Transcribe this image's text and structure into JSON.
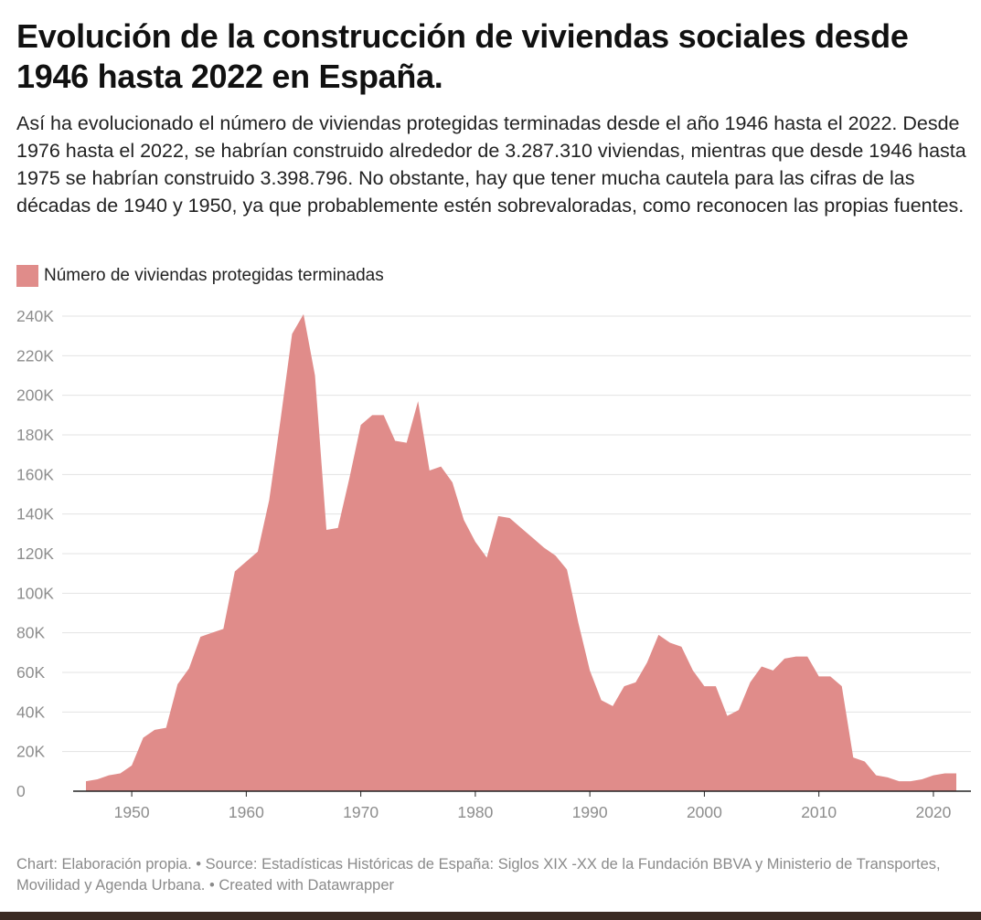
{
  "title": "Evolución de la construcción de viviendas sociales desde 1946 hasta 2022 en España.",
  "description": "Así ha evolucionado el número de viviendas protegidas terminadas desde el año 1946 hasta el 2022. Desde 1976 hasta el 2022, se habrían construido alrededor de 3.287.310 viviendas, mientras que desde 1946 hasta 1975 se habrían construido 3.398.796. No obstante, hay que tener mucha cautela para las cifras de las décadas de 1940 y 1950, ya que probablemente estén sobrevaloradas, como reconocen las propias fuentes.",
  "legend_label": "Número de viviendas protegidas terminadas",
  "footer": "Chart: Elaboración propia. • Source: Estadísticas Históricas de España: Siglos XIX -XX de la Fundación BBVA y Ministerio de Transportes, Movilidad y Agenda Urbana. • Created with Datawrapper",
  "colors": {
    "area": "#e08c8a",
    "grid": "#e3e3e3",
    "axis": "#222222",
    "tick_text": "#8d8d8d"
  },
  "chart_data": {
    "type": "area",
    "title": "Evolución de la construcción de viviendas sociales desde 1946 hasta 2022 en España.",
    "series_name": "Número de viviendas protegidas terminadas",
    "xlim": [
      1946,
      2022
    ],
    "ylim": [
      0,
      240000
    ],
    "x_ticks": [
      1950,
      1960,
      1970,
      1980,
      1990,
      2000,
      2010,
      2020
    ],
    "y_ticks": [
      0,
      20000,
      40000,
      60000,
      80000,
      100000,
      120000,
      140000,
      160000,
      180000,
      200000,
      220000,
      240000
    ],
    "y_tick_labels": [
      "0",
      "20K",
      "40K",
      "60K",
      "80K",
      "100K",
      "120K",
      "140K",
      "160K",
      "180K",
      "200K",
      "220K",
      "240K"
    ],
    "x": [
      1946,
      1947,
      1948,
      1949,
      1950,
      1951,
      1952,
      1953,
      1954,
      1955,
      1956,
      1957,
      1958,
      1959,
      1960,
      1961,
      1962,
      1963,
      1964,
      1965,
      1966,
      1967,
      1968,
      1969,
      1970,
      1971,
      1972,
      1973,
      1974,
      1975,
      1976,
      1977,
      1978,
      1979,
      1980,
      1981,
      1982,
      1983,
      1984,
      1985,
      1986,
      1987,
      1988,
      1989,
      1990,
      1991,
      1992,
      1993,
      1994,
      1995,
      1996,
      1997,
      1998,
      1999,
      2000,
      2001,
      2002,
      2003,
      2004,
      2005,
      2006,
      2007,
      2008,
      2009,
      2010,
      2011,
      2012,
      2013,
      2014,
      2015,
      2016,
      2017,
      2018,
      2019,
      2020,
      2021,
      2022
    ],
    "values": [
      5000,
      6000,
      8000,
      9000,
      13000,
      27000,
      31000,
      32000,
      54000,
      62000,
      78000,
      80000,
      82000,
      111000,
      116000,
      121000,
      147000,
      188000,
      231000,
      241000,
      210000,
      132000,
      133000,
      158000,
      185000,
      190000,
      190000,
      177000,
      176000,
      197000,
      162000,
      164000,
      156000,
      137000,
      126000,
      118000,
      139000,
      138000,
      133000,
      128000,
      123000,
      119000,
      112000,
      85000,
      61000,
      46000,
      43000,
      53000,
      55000,
      65000,
      79000,
      75000,
      73000,
      61000,
      53000,
      53000,
      38000,
      41000,
      55000,
      63000,
      61000,
      67000,
      68000,
      68000,
      58000,
      58000,
      53000,
      17000,
      15000,
      8000,
      7000,
      5000,
      5000,
      6000,
      8000,
      9000,
      9000
    ]
  }
}
